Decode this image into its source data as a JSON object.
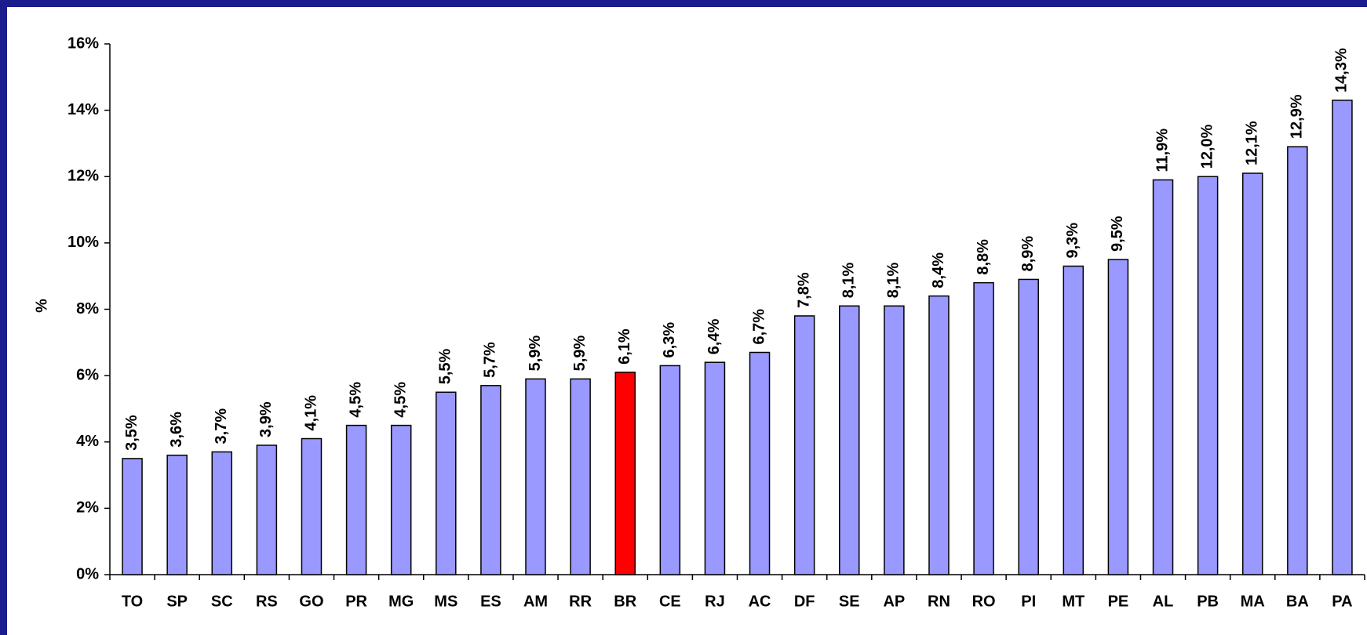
{
  "chart_data": {
    "type": "bar",
    "y_label": "%",
    "categories": [
      "TO",
      "SP",
      "SC",
      "RS",
      "GO",
      "PR",
      "MG",
      "MS",
      "ES",
      "AM",
      "RR",
      "BR",
      "CE",
      "RJ",
      "AC",
      "DF",
      "SE",
      "AP",
      "RN",
      "RO",
      "PI",
      "MT",
      "PE",
      "AL",
      "PB",
      "MA",
      "BA",
      "PA"
    ],
    "values": [
      3.5,
      3.6,
      3.7,
      3.9,
      4.1,
      4.5,
      4.5,
      5.5,
      5.7,
      5.9,
      5.9,
      6.1,
      6.3,
      6.4,
      6.7,
      7.8,
      8.1,
      8.1,
      8.4,
      8.8,
      8.9,
      9.3,
      9.5,
      11.9,
      12.0,
      12.1,
      12.9,
      14.3
    ],
    "value_labels": [
      "3,5%",
      "3,6%",
      "3,7%",
      "3,9%",
      "4,1%",
      "4,5%",
      "4,5%",
      "5,5%",
      "5,7%",
      "5,9%",
      "5,9%",
      "6,1%",
      "6,3%",
      "6,4%",
      "6,7%",
      "7,8%",
      "8,1%",
      "8,1%",
      "8,4%",
      "8,8%",
      "8,9%",
      "9,3%",
      "9,5%",
      "11,9%",
      "12,0%",
      "12,1%",
      "12,9%",
      "14,3%"
    ],
    "colors": [
      "#9999ff",
      "#9999ff",
      "#9999ff",
      "#9999ff",
      "#9999ff",
      "#9999ff",
      "#9999ff",
      "#9999ff",
      "#9999ff",
      "#9999ff",
      "#9999ff",
      "#ff0000",
      "#9999ff",
      "#9999ff",
      "#9999ff",
      "#9999ff",
      "#9999ff",
      "#9999ff",
      "#9999ff",
      "#9999ff",
      "#9999ff",
      "#9999ff",
      "#9999ff",
      "#9999ff",
      "#9999ff",
      "#9999ff",
      "#9999ff",
      "#9999ff"
    ],
    "ylim": [
      0,
      16
    ],
    "yticks": [
      {
        "value": 0,
        "label": "0%"
      },
      {
        "value": 2,
        "label": "2%"
      },
      {
        "value": 4,
        "label": "4%"
      },
      {
        "value": 6,
        "label": "6%"
      },
      {
        "value": 8,
        "label": "8%"
      },
      {
        "value": 10,
        "label": "10%"
      },
      {
        "value": 12,
        "label": "12%"
      },
      {
        "value": 14,
        "label": "14%"
      },
      {
        "value": 16,
        "label": "16%"
      }
    ],
    "grid": false
  }
}
